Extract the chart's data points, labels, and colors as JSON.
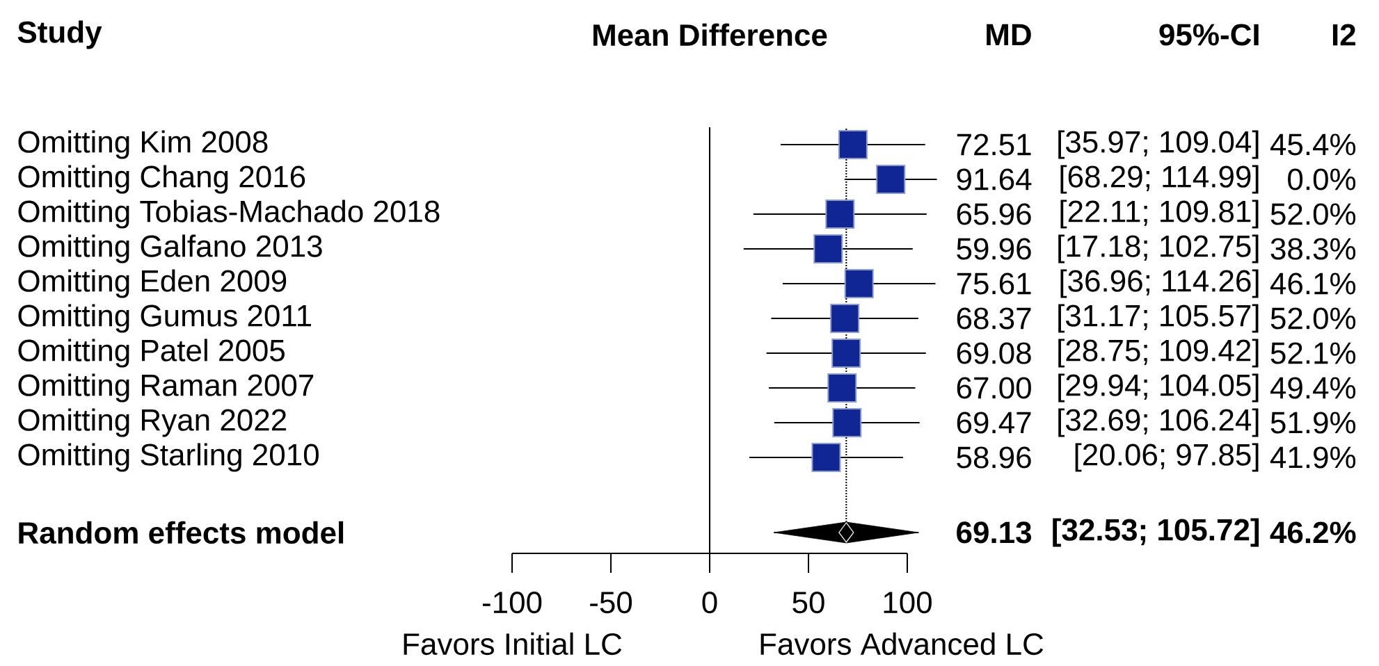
{
  "chart_data": {
    "type": "scatter",
    "orientation": "horizontal",
    "title": "Mean Difference",
    "ylabel": "Study",
    "categories": [
      "Omitting Kim 2008",
      "Omitting Chang 2016",
      "Omitting Tobias-Machado 2018",
      "Omitting Galfano 2013",
      "Omitting Eden 2009",
      "Omitting Gumus 2011",
      "Omitting Patel 2005",
      "Omitting Raman 2007",
      "Omitting Ryan 2022",
      "Omitting Starling 2010",
      "Random effects model"
    ],
    "series": [
      {
        "marker": "square",
        "color": "#102694",
        "values": [
          72.51,
          91.64,
          65.96,
          59.96,
          75.61,
          68.37,
          69.08,
          67.0,
          69.47,
          58.96,
          null
        ],
        "errors": [
          [
            35.97,
            109.04
          ],
          [
            68.29,
            114.99
          ],
          [
            22.11,
            109.81
          ],
          [
            17.18,
            102.75
          ],
          [
            36.96,
            114.26
          ],
          [
            31.17,
            105.57
          ],
          [
            28.75,
            109.42
          ],
          [
            29.94,
            104.05
          ],
          [
            32.69,
            106.24
          ],
          [
            20.06,
            97.85
          ],
          null
        ],
        "value_labels": [
          "72.51",
          "91.64",
          "65.96",
          "59.96",
          "75.61",
          "68.37",
          "69.08",
          "67.00",
          "69.47",
          "58.96",
          null
        ]
      },
      {
        "marker": "diamond",
        "color": "#000000",
        "values": [
          null,
          null,
          null,
          null,
          null,
          null,
          null,
          null,
          null,
          null,
          69.13
        ],
        "errors": [
          null,
          null,
          null,
          null,
          null,
          null,
          null,
          null,
          null,
          null,
          [
            32.53,
            105.72
          ]
        ],
        "value_labels": [
          null,
          null,
          null,
          null,
          null,
          null,
          null,
          null,
          null,
          null,
          "69.13"
        ]
      }
    ],
    "xlim": [
      -100,
      100
    ],
    "xticks": [
      -100,
      -50,
      0,
      50,
      100
    ],
    "ref_lines": [
      {
        "axis": "x",
        "value": 0,
        "line_style": "solid"
      },
      {
        "axis": "x",
        "value": 69.13,
        "line_style": "dotted"
      }
    ],
    "annotations": [
      "MD",
      "95%-CI",
      "I2",
      "[35.97; 109.04]",
      "[68.29; 114.99]",
      "[22.11; 109.81]",
      "[17.18; 102.75]",
      "[36.96; 114.26]",
      "[31.17; 105.57]",
      "[28.75; 109.42]",
      "[29.94; 104.05]",
      "[32.69; 106.24]",
      "[20.06; 97.85]",
      "[32.53; 105.72]",
      "45.4%",
      "0.0%",
      "52.0%",
      "38.3%",
      "46.1%",
      "52.0%",
      "52.1%",
      "49.4%",
      "51.9%",
      "41.9%",
      "46.2%",
      "Favors Initial LC",
      "Favors Advanced LC"
    ],
    "grid": false
  }
}
